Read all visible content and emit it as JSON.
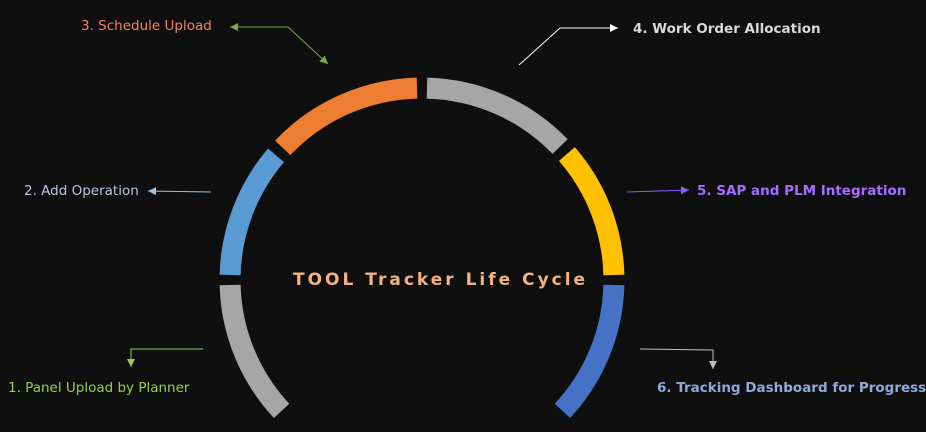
{
  "title": "TOOL Tracker Life Cycle",
  "colors": {
    "background": "#0f0f0f",
    "title": "#f4b183"
  },
  "steps": [
    {
      "label": "1. Panel Upload by Planner",
      "segment_color": "#a6a6a6",
      "text_color": "#92d050",
      "arrow_color": "#92d050"
    },
    {
      "label": "2. Add Operation",
      "segment_color": "#5b9bd5",
      "text_color": "#b4c7e7",
      "arrow_color": "#9dc3e6"
    },
    {
      "label": "3. Schedule Upload",
      "segment_color": "#ed7d31",
      "text_color": "#f4815f",
      "arrow_color": "#70ad47"
    },
    {
      "label": "4. Work Order Allocation",
      "segment_color": "#a6a6a6",
      "text_color": "#d9d9d9",
      "arrow_color": "#ffffff"
    },
    {
      "label": "5. SAP and PLM Integration",
      "segment_color": "#ffc000",
      "text_color": "#a66cff",
      "arrow_color": "#8f5cff"
    },
    {
      "label": "6. Tracking Dashboard for Progress",
      "segment_color": "#4472c4",
      "text_color": "#8eaadb",
      "arrow_color": "#bfbfbf"
    }
  ]
}
